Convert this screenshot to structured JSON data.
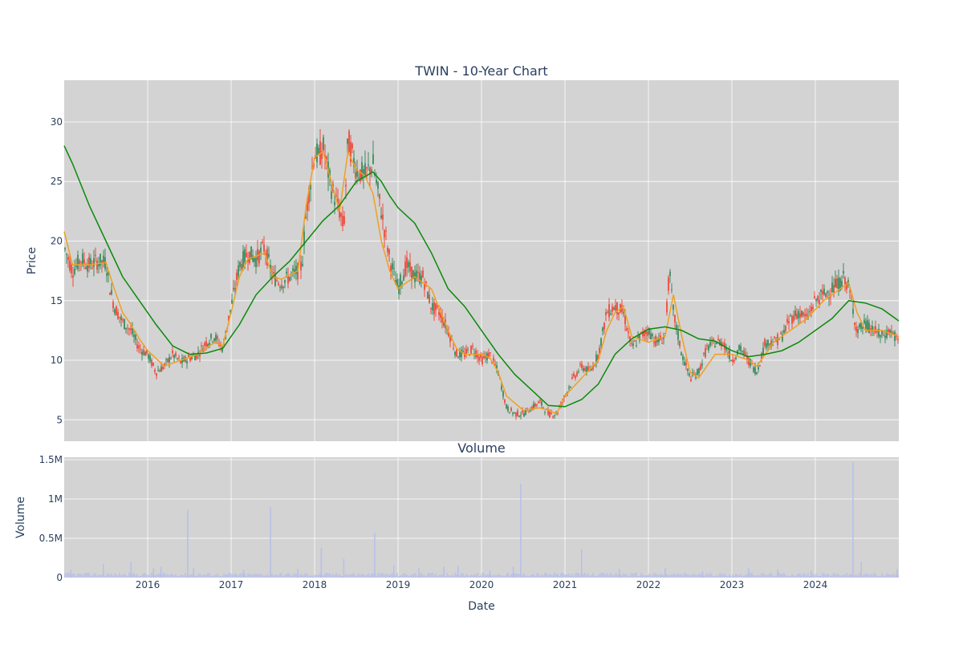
{
  "chart_data": [
    {
      "type": "line",
      "title": "TWIN - 10-Year Chart",
      "ylabel": "Price",
      "xlim": [
        2015.0,
        2025.0
      ],
      "ylim": [
        3.2,
        33.5
      ],
      "y_ticks": [
        5,
        10,
        15,
        20,
        25,
        30
      ],
      "x_ticks": [
        2016,
        2017,
        2018,
        2019,
        2020,
        2021,
        2022,
        2023,
        2024
      ],
      "grid": true,
      "legend": "none",
      "candlestick_colors": {
        "up": "#3d8b5e",
        "down": "#ef4b3c"
      },
      "close_series": {
        "x": [
          2015.0,
          2015.1,
          2015.2,
          2015.3,
          2015.4,
          2015.5,
          2015.55,
          2015.6,
          2015.7,
          2015.8,
          2015.9,
          2016.0,
          2016.1,
          2016.2,
          2016.3,
          2016.4,
          2016.5,
          2016.6,
          2016.7,
          2016.8,
          2016.9,
          2017.0,
          2017.1,
          2017.2,
          2017.3,
          2017.4,
          2017.5,
          2017.6,
          2017.7,
          2017.8,
          2017.85,
          2017.9,
          2018.0,
          2018.05,
          2018.1,
          2018.2,
          2018.3,
          2018.35,
          2018.4,
          2018.5,
          2018.6,
          2018.7,
          2018.8,
          2018.9,
          2019.0,
          2019.1,
          2019.2,
          2019.3,
          2019.4,
          2019.5,
          2019.6,
          2019.7,
          2019.8,
          2019.9,
          2020.0,
          2020.1,
          2020.2,
          2020.3,
          2020.4,
          2020.5,
          2020.6,
          2020.7,
          2020.8,
          2020.9,
          2021.0,
          2021.1,
          2021.2,
          2021.3,
          2021.4,
          2021.5,
          2021.6,
          2021.7,
          2021.8,
          2021.9,
          2022.0,
          2022.1,
          2022.2,
          2022.25,
          2022.3,
          2022.4,
          2022.5,
          2022.6,
          2022.7,
          2022.8,
          2022.9,
          2023.0,
          2023.1,
          2023.2,
          2023.3,
          2023.4,
          2023.5,
          2023.6,
          2023.7,
          2023.8,
          2023.9,
          2024.0,
          2024.1,
          2024.2,
          2024.3,
          2024.35,
          2024.4,
          2024.5,
          2024.6,
          2024.7,
          2024.8,
          2024.9,
          2025.0
        ],
        "close": [
          19.5,
          17.5,
          18.5,
          18.0,
          18.3,
          18.2,
          16.0,
          14.5,
          13.2,
          12.5,
          11.0,
          10.5,
          9.0,
          9.5,
          10.5,
          9.8,
          10.2,
          10.5,
          11.5,
          12.0,
          11.0,
          14.5,
          18.0,
          19.0,
          18.5,
          19.5,
          17.0,
          16.5,
          17.0,
          17.5,
          18.0,
          22.5,
          27.5,
          27.0,
          28.0,
          24.5,
          22.5,
          21.0,
          28.5,
          26.0,
          25.5,
          26.5,
          22.5,
          18.5,
          16.0,
          18.0,
          17.0,
          17.0,
          14.5,
          14.0,
          12.5,
          10.5,
          10.5,
          11.0,
          10.0,
          10.5,
          9.0,
          6.0,
          5.5,
          5.5,
          6.0,
          6.5,
          5.5,
          5.5,
          7.0,
          8.5,
          9.5,
          9.0,
          10.5,
          14.0,
          14.5,
          14.0,
          11.0,
          12.0,
          12.5,
          11.5,
          12.0,
          17.5,
          14.0,
          10.5,
          8.5,
          9.0,
          11.0,
          11.5,
          11.5,
          10.0,
          11.0,
          10.0,
          9.0,
          11.5,
          11.5,
          12.0,
          13.5,
          14.0,
          13.5,
          15.0,
          15.5,
          16.0,
          16.5,
          17.0,
          16.0,
          12.5,
          13.0,
          12.5,
          12.0,
          12.5,
          11.5
        ],
        "color": "#ef4b3c"
      },
      "ma_short": {
        "x": [
          2015.0,
          2015.1,
          2015.3,
          2015.5,
          2015.6,
          2015.7,
          2015.8,
          2015.9,
          2016.0,
          2016.2,
          2016.4,
          2016.6,
          2016.8,
          2016.9,
          2017.0,
          2017.1,
          2017.2,
          2017.4,
          2017.5,
          2017.6,
          2017.8,
          2017.9,
          2018.0,
          2018.1,
          2018.2,
          2018.3,
          2018.4,
          2018.5,
          2018.6,
          2018.7,
          2018.8,
          2018.9,
          2019.0,
          2019.2,
          2019.4,
          2019.6,
          2019.7,
          2019.8,
          2020.0,
          2020.1,
          2020.2,
          2020.3,
          2020.5,
          2020.7,
          2020.8,
          2020.9,
          2021.0,
          2021.2,
          2021.4,
          2021.5,
          2021.6,
          2021.7,
          2021.8,
          2022.0,
          2022.2,
          2022.3,
          2022.4,
          2022.5,
          2022.6,
          2022.8,
          2023.0,
          2023.2,
          2023.3,
          2023.5,
          2023.7,
          2023.9,
          2024.1,
          2024.3,
          2024.4,
          2024.5,
          2024.6,
          2024.8,
          2025.0
        ],
        "values": [
          20.8,
          18.0,
          18.0,
          18.2,
          16.0,
          14.0,
          13.0,
          11.8,
          10.8,
          9.5,
          10.0,
          10.5,
          11.5,
          11.2,
          14.0,
          17.0,
          18.5,
          19.0,
          17.0,
          16.8,
          17.5,
          23.0,
          27.0,
          27.5,
          25.0,
          22.5,
          27.5,
          26.0,
          25.5,
          24.0,
          20.0,
          17.5,
          16.0,
          17.0,
          16.0,
          12.5,
          11.0,
          10.5,
          10.5,
          10.2,
          9.0,
          7.0,
          5.8,
          6.0,
          5.8,
          5.5,
          7.0,
          8.5,
          10.0,
          12.5,
          14.0,
          14.5,
          12.0,
          11.5,
          12.0,
          15.5,
          12.0,
          9.0,
          8.5,
          10.5,
          10.5,
          10.0,
          9.5,
          11.5,
          12.5,
          13.5,
          15.0,
          16.0,
          16.5,
          14.0,
          12.5,
          12.5,
          12.0
        ],
        "color": "#f0a020"
      },
      "ma_long": {
        "x": [
          2015.0,
          2015.1,
          2015.3,
          2015.5,
          2015.7,
          2015.9,
          2016.1,
          2016.3,
          2016.5,
          2016.7,
          2016.9,
          2017.1,
          2017.3,
          2017.5,
          2017.7,
          2017.9,
          2018.1,
          2018.3,
          2018.5,
          2018.7,
          2018.8,
          2018.9,
          2019.0,
          2019.2,
          2019.4,
          2019.6,
          2019.8,
          2020.0,
          2020.2,
          2020.4,
          2020.6,
          2020.8,
          2021.0,
          2021.2,
          2021.4,
          2021.6,
          2021.8,
          2022.0,
          2022.2,
          2022.4,
          2022.6,
          2022.8,
          2023.0,
          2023.2,
          2023.4,
          2023.6,
          2023.8,
          2024.0,
          2024.2,
          2024.4,
          2024.6,
          2024.8,
          2025.0
        ],
        "values": [
          28.0,
          26.5,
          23.0,
          20.0,
          17.0,
          15.0,
          13.0,
          11.2,
          10.5,
          10.6,
          11.0,
          13.0,
          15.5,
          17.0,
          18.3,
          20.0,
          21.7,
          23.0,
          25.0,
          25.8,
          25.0,
          23.8,
          22.8,
          21.5,
          19.0,
          16.0,
          14.5,
          12.5,
          10.5,
          8.8,
          7.5,
          6.2,
          6.1,
          6.7,
          8.0,
          10.5,
          11.8,
          12.6,
          12.8,
          12.5,
          11.8,
          11.6,
          10.8,
          10.3,
          10.5,
          10.8,
          11.5,
          12.5,
          13.5,
          15.0,
          14.8,
          14.3,
          13.3
        ],
        "color": "#0a8a0a"
      }
    },
    {
      "type": "bar",
      "title": "Volume",
      "xlabel": "Date",
      "ylabel": "Volume",
      "xlim": [
        2015.0,
        2025.0
      ],
      "ylim": [
        0,
        1530000
      ],
      "y_ticks": [
        0,
        500000,
        1000000,
        1500000
      ],
      "y_tick_labels": [
        "0",
        "0.5M",
        "1M",
        "1.5M"
      ],
      "x_ticks": [
        2016,
        2017,
        2018,
        2019,
        2020,
        2021,
        2022,
        2023,
        2024
      ],
      "grid": true,
      "bar_color": "#b8c0e8",
      "spikes": {
        "x": [
          2015.08,
          2015.47,
          2015.8,
          2016.07,
          2016.16,
          2016.48,
          2016.55,
          2017.15,
          2017.47,
          2017.8,
          2018.08,
          2018.35,
          2018.72,
          2018.95,
          2019.25,
          2019.55,
          2019.72,
          2020.1,
          2020.38,
          2020.47,
          2021.2,
          2021.65,
          2022.2,
          2022.65,
          2023.2,
          2023.55,
          2023.95,
          2024.45,
          2024.55,
          2024.98
        ],
        "values": [
          100000,
          170000,
          200000,
          120000,
          140000,
          860000,
          120000,
          100000,
          900000,
          110000,
          380000,
          240000,
          570000,
          160000,
          120000,
          140000,
          150000,
          90000,
          140000,
          1190000,
          360000,
          110000,
          120000,
          80000,
          120000,
          100000,
          90000,
          1470000,
          200000,
          110000
        ]
      },
      "base_volume": 45000
    }
  ]
}
